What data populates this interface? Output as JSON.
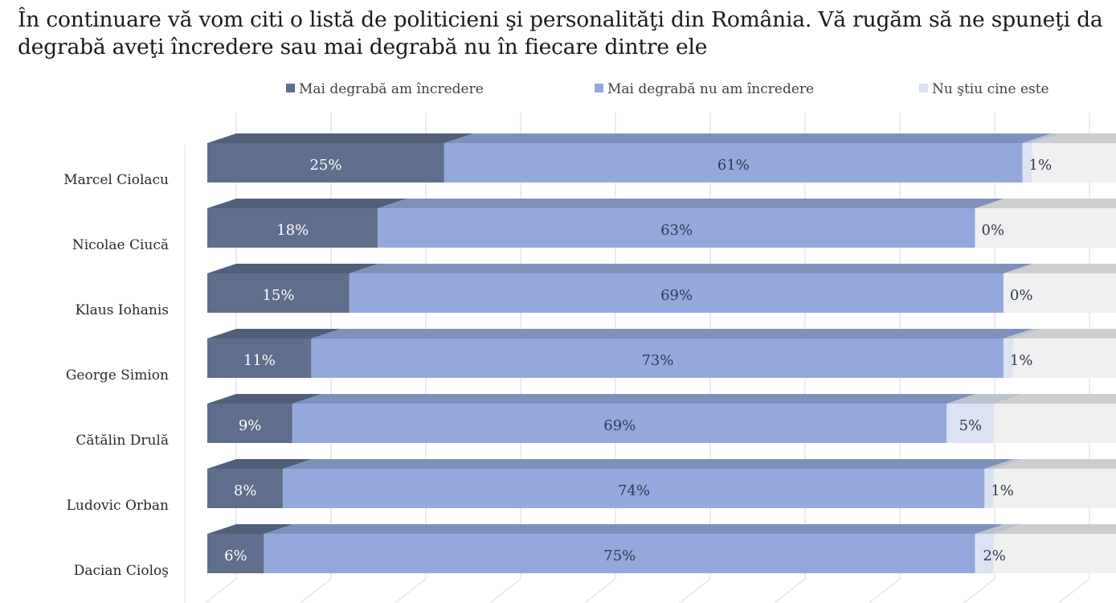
{
  "question": {
    "line1": "În continuare vă vom citi o listă de politicieni şi personalităţi din România. Vă rugăm să ne spuneţi da",
    "line2": "degrabă aveţi încredere sau mai degrabă nu în fiecare dintre ele"
  },
  "chart_data": {
    "type": "bar",
    "orientation": "horizontal",
    "stacked": true,
    "style": "3d",
    "title": "",
    "categories": [
      "Marcel Ciolacu",
      "Nicolae Ciucă",
      "Klaus Iohanis",
      "George Simion",
      "Cătălin Drulă",
      "Ludovic Orban",
      "Dacian Cioloş"
    ],
    "series": [
      {
        "name": "Mai degrabă am încredere",
        "values": [
          25,
          18,
          15,
          11,
          9,
          8,
          6
        ],
        "labels": [
          "25%",
          "18%",
          "15%",
          "11%",
          "9%",
          "8%",
          "6%"
        ]
      },
      {
        "name": "Mai degrabă nu am încredere",
        "values": [
          61,
          63,
          69,
          73,
          69,
          74,
          75
        ],
        "labels": [
          "61%",
          "63%",
          "69%",
          "73%",
          "69%",
          "74%",
          "75%"
        ]
      },
      {
        "name": "Nu ştiu cine este",
        "values": [
          1,
          0,
          0,
          1,
          5,
          1,
          2
        ],
        "labels": [
          "1%",
          "0%",
          "0%",
          "1%",
          "5%",
          "1%",
          "2%"
        ]
      }
    ],
    "xlim": [
      0,
      100
    ],
    "legend_position": "top",
    "gridlines": true,
    "colors": {
      "series": [
        "#5f6e8c",
        "#93a9dc",
        "#dbe2f2"
      ],
      "remainder": "#f0f0f0",
      "grid": "#d9d9d9"
    }
  }
}
